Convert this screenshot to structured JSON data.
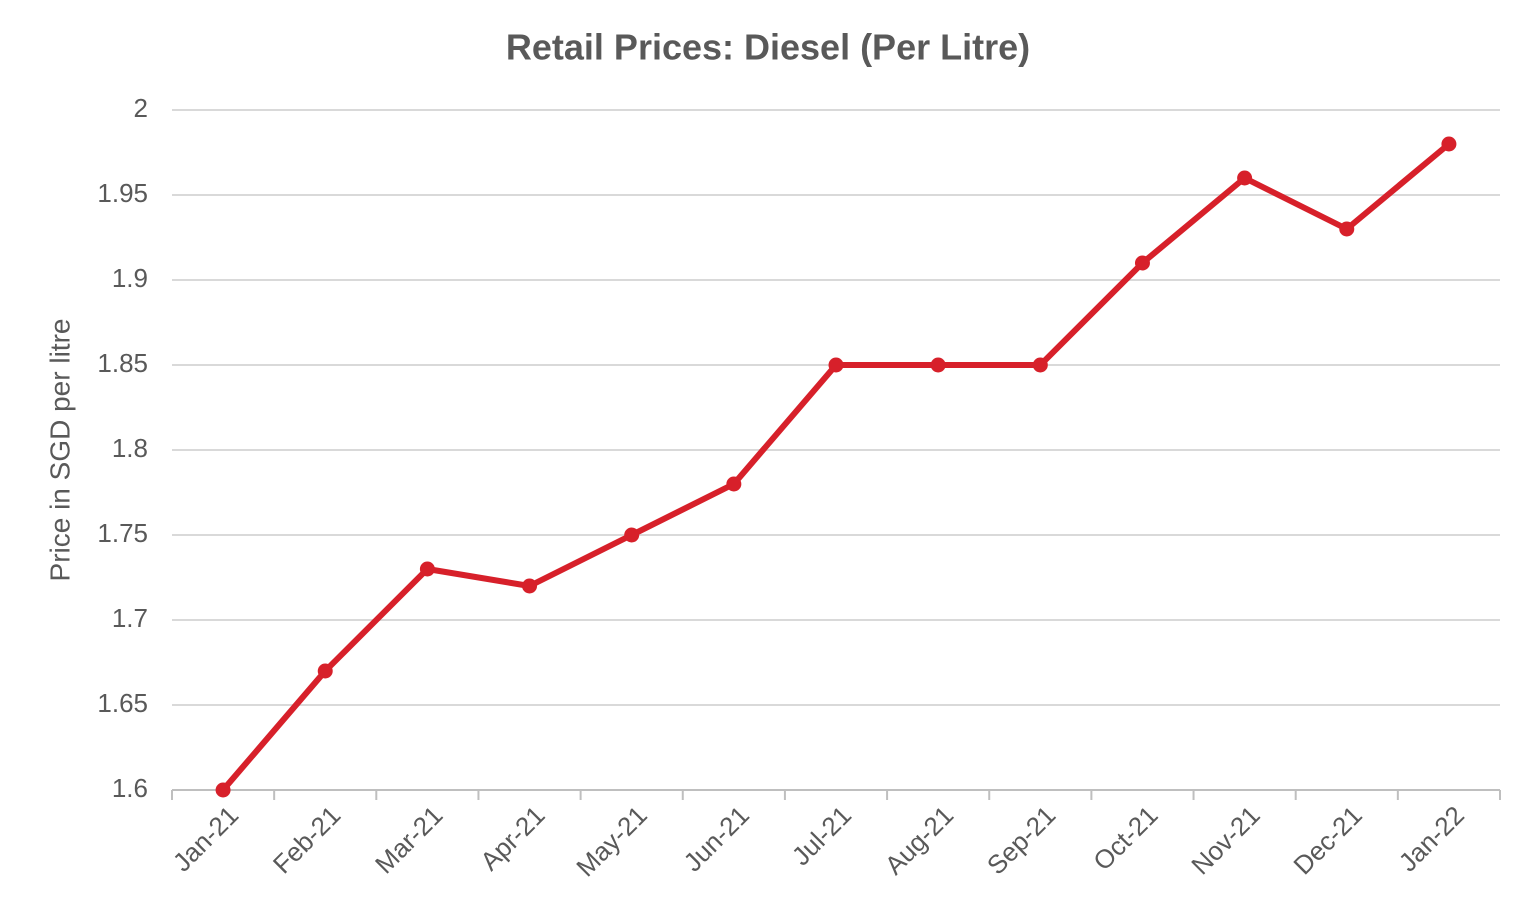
{
  "chart_data": {
    "type": "line",
    "title": "Retail Prices: Diesel (Per Litre)",
    "y_label": "Price in SGD per litre",
    "categories": [
      "Jan-21",
      "Feb-21",
      "Mar-21",
      "Apr-21",
      "May-21",
      "Jun-21",
      "Jul-21",
      "Aug-21",
      "Sep-21",
      "Oct-21",
      "Nov-21",
      "Dec-21",
      "Jan-22"
    ],
    "values": [
      1.6,
      1.67,
      1.73,
      1.72,
      1.75,
      1.78,
      1.85,
      1.85,
      1.85,
      1.91,
      1.96,
      1.93,
      1.98
    ],
    "color": "#d7202a",
    "ylim": [
      1.6,
      2
    ],
    "yticks": [
      1.6,
      1.65,
      1.7,
      1.75,
      1.8,
      1.85,
      1.9,
      1.95,
      2
    ],
    "grid": true
  }
}
